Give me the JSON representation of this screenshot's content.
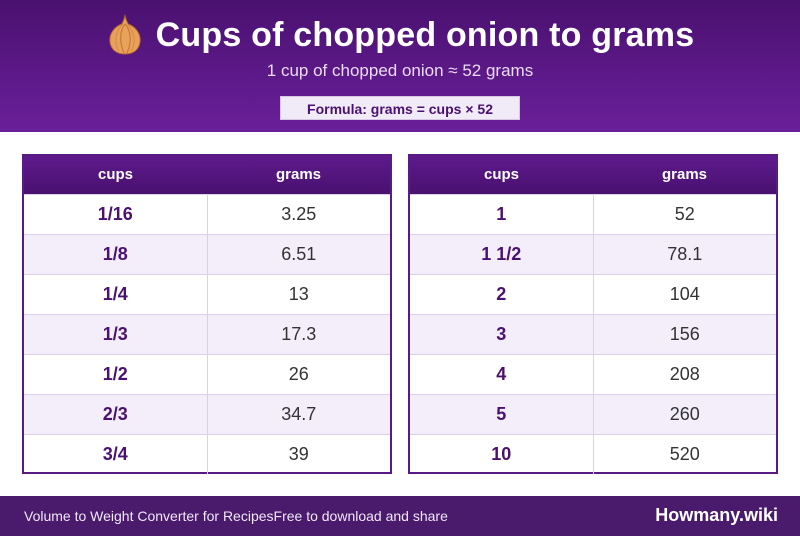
{
  "header": {
    "title": "Cups of chopped onion to grams",
    "subtitle": "1 cup of chopped onion ≈ 52 grams",
    "formula": "Formula: grams = cups × 52",
    "icon": "onion-icon"
  },
  "table_left": {
    "headers": [
      "cups",
      "grams"
    ],
    "rows": [
      [
        "1/16",
        "3.25"
      ],
      [
        "1/8",
        "6.51"
      ],
      [
        "1/4",
        "13"
      ],
      [
        "1/3",
        "17.3"
      ],
      [
        "1/2",
        "26"
      ],
      [
        "2/3",
        "34.7"
      ],
      [
        "3/4",
        "39"
      ]
    ]
  },
  "table_right": {
    "headers": [
      "cups",
      "grams"
    ],
    "rows": [
      [
        "1",
        "52"
      ],
      [
        "1 1/2",
        "78.1"
      ],
      [
        "2",
        "104"
      ],
      [
        "3",
        "156"
      ],
      [
        "4",
        "208"
      ],
      [
        "5",
        "260"
      ],
      [
        "10",
        "520"
      ]
    ]
  },
  "footer": {
    "left_text": "Volume to Weight Converter for Recipes",
    "mid_text": "Free to download and share",
    "brand": "Howmany.wiki"
  },
  "colors": {
    "header_dark": "#4a1170",
    "header_light": "#6a1f9a",
    "accent_text": "#4a1170",
    "alt_row": "#f3eef9",
    "footer_bg": "#4a1a6c"
  }
}
